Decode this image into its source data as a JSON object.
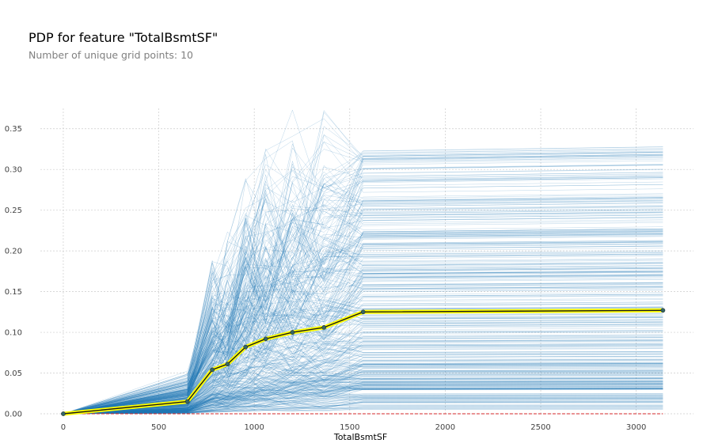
{
  "chart_data": {
    "type": "line",
    "title": "PDP for feature \"TotalBsmtSF\"",
    "subtitle": "Number of unique grid points: 10",
    "xlabel": "TotalBsmtSF",
    "ylabel": "",
    "xlim": [
      -120,
      3300
    ],
    "ylim": [
      0,
      0.375
    ],
    "xticks": [
      0,
      500,
      1000,
      1500,
      2000,
      2500,
      3000
    ],
    "yticks": [
      0.0,
      0.05,
      0.1,
      0.15,
      0.2,
      0.25,
      0.3,
      0.35
    ],
    "xtick_labels": [
      "0",
      "500",
      "1000",
      "1500",
      "2000",
      "2500",
      "3000"
    ],
    "ytick_labels": [
      "0.00",
      "0.05",
      "0.10",
      "0.15",
      "0.20",
      "0.25",
      "0.30",
      "0.35"
    ],
    "grid": true,
    "series": [
      {
        "role": "pdp",
        "x": [
          0,
          650,
          780,
          860,
          955,
          1060,
          1200,
          1365,
          1570,
          3140
        ],
        "y": [
          0.0,
          0.015,
          0.054,
          0.061,
          0.082,
          0.092,
          0.1,
          0.106,
          0.125,
          0.127
        ]
      }
    ],
    "ice": {
      "count": 400,
      "final_range": [
        0.03,
        0.33
      ],
      "color": "#1f77b4"
    },
    "colors": {
      "pdp_line": "#1a1a1a",
      "pdp_band": "#ffff00",
      "pdp_marker": "#336666",
      "baseline": "#d62728",
      "grid": "#cccccc"
    }
  }
}
